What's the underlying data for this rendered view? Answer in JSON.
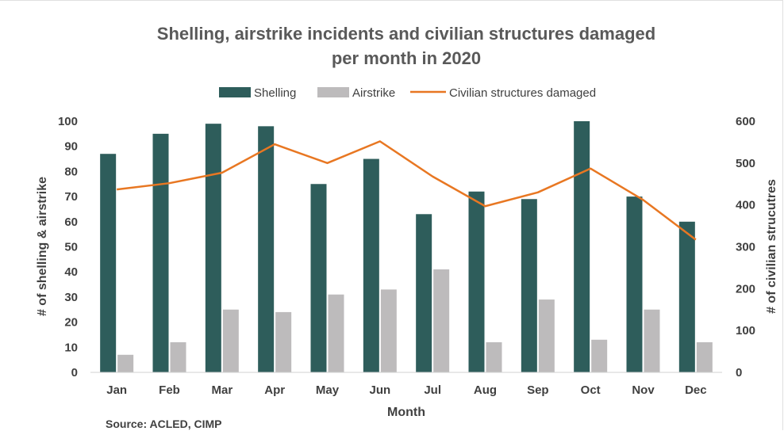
{
  "chart_data": {
    "type": "bar",
    "title_line1": "Shelling, airstrike incidents and civilian structures damaged",
    "title_line2": "per month in 2020",
    "categories": [
      "Jan",
      "Feb",
      "Mar",
      "Apr",
      "May",
      "Jun",
      "Jul",
      "Aug",
      "Sep",
      "Oct",
      "Nov",
      "Dec"
    ],
    "series": [
      {
        "name": "Shelling",
        "type": "bar",
        "axis": "left",
        "color": "#2e5d5b",
        "values": [
          87,
          95,
          99,
          98,
          75,
          85,
          63,
          72,
          69,
          100,
          70,
          60
        ]
      },
      {
        "name": "Airstrike",
        "type": "bar",
        "axis": "left",
        "color": "#bdbbbc",
        "values": [
          7,
          12,
          25,
          24,
          31,
          33,
          41,
          12,
          29,
          13,
          25,
          12
        ]
      },
      {
        "name": "Civilian structures damaged",
        "type": "line",
        "axis": "right",
        "color": "#e87722",
        "values": [
          437,
          452,
          477,
          545,
          500,
          552,
          468,
          397,
          430,
          487,
          412,
          317
        ]
      }
    ],
    "xlabel": "Month",
    "ylabel": "# of shelling & airstrike",
    "y2label": "# of civilian strucutres",
    "ylim": [
      0,
      100
    ],
    "y2lim": [
      0,
      600
    ],
    "yticks": [
      "0",
      "10",
      "20",
      "30",
      "40",
      "50",
      "60",
      "70",
      "80",
      "90",
      "100"
    ],
    "y2ticks": [
      "0",
      "100",
      "200",
      "300",
      "400",
      "500",
      "600"
    ],
    "legend_position": "top",
    "grid": false,
    "source": "Source: ACLED, CIMP"
  }
}
